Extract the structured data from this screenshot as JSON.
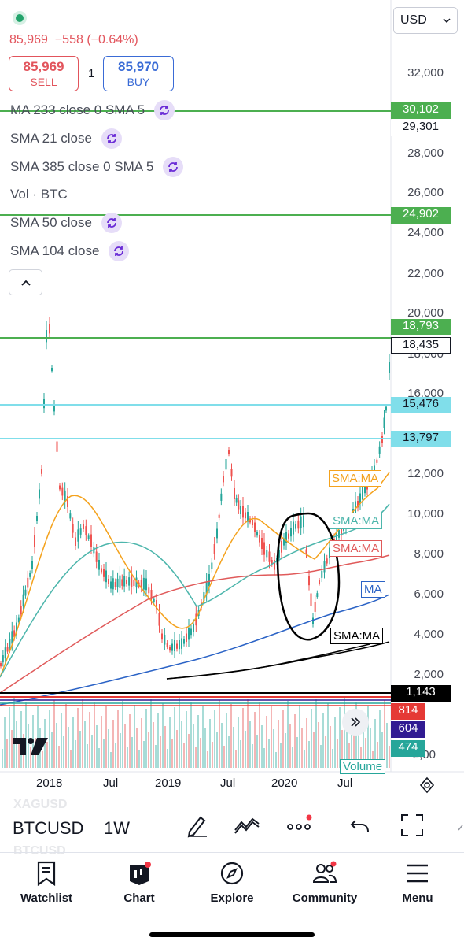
{
  "header": {
    "price": "85,969",
    "change": "−558 (−0.64%)",
    "sell_value": "85,969",
    "sell_label": "SELL",
    "spread": "1",
    "buy_value": "85,970",
    "buy_label": "BUY",
    "currency": "USD"
  },
  "indicators": [
    {
      "label": "MA 233 close 0 SMA 5"
    },
    {
      "label": "SMA 21 close"
    },
    {
      "label": "SMA 385 close 0 SMA 5"
    },
    {
      "label": "Vol · BTC"
    },
    {
      "label": "SMA 50 close"
    },
    {
      "label": "SMA 104 close"
    }
  ],
  "price_axis": {
    "ticks": [
      "32,000",
      "28,000",
      "26,000",
      "24,000",
      "22,000",
      "20,000",
      "18,000",
      "16,000",
      "12,000",
      "10,000",
      "8,000",
      "6,000",
      "4,000",
      "2,000"
    ],
    "tags": [
      {
        "value": "30,102",
        "color": "#4caf50"
      },
      {
        "value": "29,301",
        "color": "#ffffff"
      },
      {
        "value": "24,902",
        "color": "#4caf50"
      },
      {
        "value": "18,793",
        "color": "#4caf50"
      },
      {
        "value": "18,435",
        "color": "#ffffff"
      },
      {
        "value": "15,476",
        "color": "#80deea"
      },
      {
        "value": "13,797",
        "color": "#80deea"
      },
      {
        "value": "1,143",
        "color": "#000000"
      },
      {
        "value": "814",
        "color": "#e53935"
      },
      {
        "value": "604",
        "color": "#311b92"
      },
      {
        "value": "474",
        "color": "#26a69a"
      }
    ],
    "partial_tick": "2,00"
  },
  "ma_tags": [
    {
      "label": "SMA:MA",
      "color": "#f4a21d"
    },
    {
      "label": "SMA:MA",
      "color": "#4db6ac"
    },
    {
      "label": "SMA:MA",
      "color": "#e05a5a"
    },
    {
      "label": "MA",
      "color": "#2b63c6"
    },
    {
      "label": "SMA:MA",
      "color": "#000000"
    }
  ],
  "volume_label": "Volume",
  "x_axis": [
    "2018",
    "Jul",
    "2019",
    "Jul",
    "2020",
    "Jul"
  ],
  "toolbar": {
    "symbol": "BTCUSD",
    "interval": "1W",
    "ghost_top": "XAGUSD",
    "ghost_bottom": "BTCUSD"
  },
  "bottom_nav": [
    {
      "label": "Watchlist",
      "icon": "bookmark-icon"
    },
    {
      "label": "Chart",
      "icon": "chart-icon"
    },
    {
      "label": "Explore",
      "icon": "compass-icon"
    },
    {
      "label": "Community",
      "icon": "community-icon"
    },
    {
      "label": "Menu",
      "icon": "menu-icon"
    }
  ]
}
